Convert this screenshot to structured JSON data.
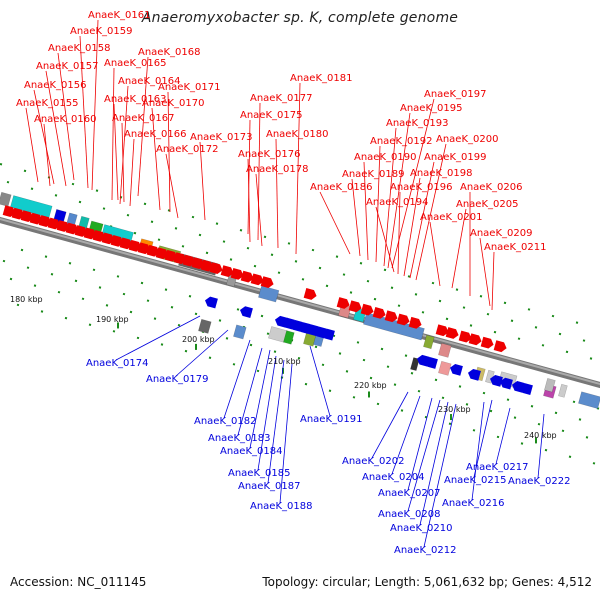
{
  "title": "Anaeromyxobacter sp. K, complete genome",
  "footer": {
    "accession": "Accession: NC_011145",
    "topology": "Topology: circular; Length: 5,061,632 bp; Genes: 4,512"
  },
  "colors": {
    "forward": "#ee0000",
    "reverse": "#0000dd",
    "backbone": "#888888",
    "tick": "#1a8a1a"
  },
  "scale_labels": [
    "180 kbp",
    "190 kbp",
    "200 kbp",
    "210 kbp",
    "220 kbp",
    "230 kbp",
    "240 kbp"
  ],
  "forward_genes": [
    "AnaeK_0161",
    "AnaeK_0159",
    "AnaeK_0158",
    "AnaeK_0168",
    "AnaeK_0157",
    "AnaeK_0165",
    "AnaeK_0164",
    "AnaeK_0156",
    "AnaeK_0171",
    "AnaeK_0163",
    "AnaeK_0155",
    "AnaeK_0170",
    "AnaeK_0167",
    "AnaeK_0160",
    "AnaeK_0166",
    "AnaeK_0173",
    "AnaeK_0172",
    "AnaeK_0181",
    "AnaeK_0177",
    "AnaeK_0175",
    "AnaeK_0180",
    "AnaeK_0176",
    "AnaeK_0178",
    "AnaeK_0197",
    "AnaeK_0195",
    "AnaeK_0193",
    "AnaeK_0192",
    "AnaeK_0200",
    "AnaeK_0190",
    "AnaeK_0199",
    "AnaeK_0189",
    "AnaeK_0198",
    "AnaeK_0186",
    "AnaeK_0196",
    "AnaeK_0206",
    "AnaeK_0194",
    "AnaeK_0205",
    "AnaeK_0201",
    "AnaeK_0209",
    "AnaeK_0211"
  ],
  "reverse_genes": [
    "AnaeK_0174",
    "AnaeK_0179",
    "AnaeK_0182",
    "AnaeK_0191",
    "AnaeK_0183",
    "AnaeK_0184",
    "AnaeK_0185",
    "AnaeK_0187",
    "AnaeK_0188",
    "AnaeK_0202",
    "AnaeK_0204",
    "AnaeK_0217",
    "AnaeK_0222",
    "AnaeK_0215",
    "AnaeK_0207",
    "AnaeK_0216",
    "AnaeK_0208",
    "AnaeK_0210",
    "AnaeK_0212"
  ]
}
